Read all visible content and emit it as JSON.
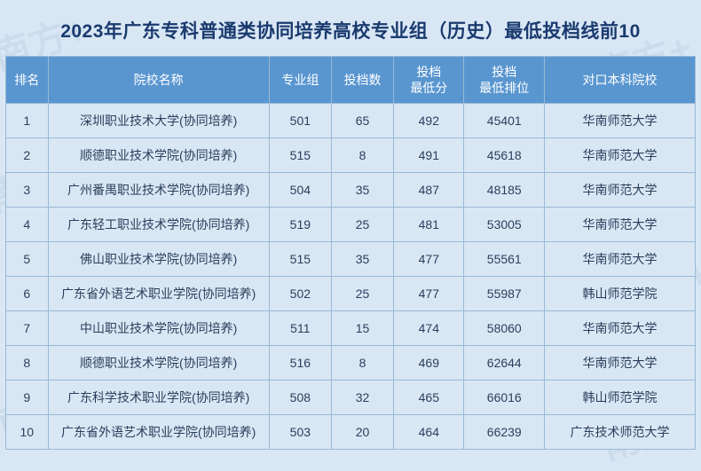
{
  "title": "2023年广东专科普通类协同培养高校专业组（历史）最低投档线前10",
  "watermark_text": "南方+",
  "table": {
    "columns": [
      {
        "label": "排名",
        "class": "col-rank"
      },
      {
        "label": "院校名称",
        "class": "col-school"
      },
      {
        "label": "专业组",
        "class": "col-group"
      },
      {
        "label": "投档数",
        "class": "col-count"
      },
      {
        "label": "投档\n最低分",
        "class": "col-minscore"
      },
      {
        "label": "投档\n最低排位",
        "class": "col-minrank"
      },
      {
        "label": "对口本科院校",
        "class": "col-partner"
      }
    ],
    "rows": [
      [
        "1",
        "深圳职业技术大学(协同培养)",
        "501",
        "65",
        "492",
        "45401",
        "华南师范大学"
      ],
      [
        "2",
        "顺德职业技术学院(协同培养)",
        "515",
        "8",
        "491",
        "45618",
        "华南师范大学"
      ],
      [
        "3",
        "广州番禺职业技术学院(协同培养)",
        "504",
        "35",
        "487",
        "48185",
        "华南师范大学"
      ],
      [
        "4",
        "广东轻工职业技术学院(协同培养)",
        "519",
        "25",
        "481",
        "53005",
        "华南师范大学"
      ],
      [
        "5",
        "佛山职业技术学院(协同培养)",
        "515",
        "35",
        "477",
        "55561",
        "华南师范大学"
      ],
      [
        "6",
        "广东省外语艺术职业学院(协同培养)",
        "502",
        "25",
        "477",
        "55987",
        "韩山师范学院"
      ],
      [
        "7",
        "中山职业技术学院(协同培养)",
        "511",
        "15",
        "474",
        "58060",
        "华南师范大学"
      ],
      [
        "8",
        "顺德职业技术学院(协同培养)",
        "516",
        "8",
        "469",
        "62644",
        "华南师范大学"
      ],
      [
        "9",
        "广东科学技术职业学院(协同培养)",
        "508",
        "32",
        "465",
        "66016",
        "韩山师范学院"
      ],
      [
        "10",
        "广东省外语艺术职业学院(协同培养)",
        "503",
        "20",
        "464",
        "66239",
        "广东技术师范大学"
      ]
    ]
  },
  "colors": {
    "page_bg": "#d9e7f5",
    "header_bg": "#5996d0",
    "header_text": "#ffffff",
    "border": "#9bb8d4",
    "title_color": "#1a3a6e",
    "cell_text": "#2a3f5a",
    "watermark_color": "rgba(180,200,220,0.35)"
  },
  "typography": {
    "title_fontsize": 21,
    "header_fontsize": 14,
    "cell_fontsize": 14,
    "font_family": "Microsoft YaHei"
  }
}
